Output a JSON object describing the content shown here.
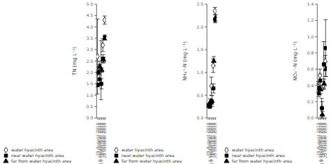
{
  "chart_data": [
    {
      "type": "scatter",
      "ylabel": "TN (mg L⁻¹)",
      "categories": [
        "19 August 2010",
        "6 September 2010",
        "19 September 2010",
        "4 October 2010",
        "20 October 2010"
      ],
      "ylim": [
        0,
        5
      ],
      "yticks": [
        {
          "value": 0,
          "label": "0.0"
        },
        0.5,
        {
          "value": 1.0,
          "label": "1.0"
        },
        1.5,
        {
          "value": 2.0,
          "label": "2.0"
        },
        2.5,
        {
          "value": 3.0,
          "label": "3.0"
        },
        3.5,
        {
          "value": 4.0,
          "label": "4.0"
        },
        4.5,
        {
          "value": 5.0,
          "label": "5.0"
        }
      ],
      "grid": false,
      "legend": "bottom",
      "series": [
        {
          "name": "water hyacinth area",
          "color": "#000000",
          "marker": "hollow_diamond",
          "values": [
            2.7,
            2.25,
            2.1,
            3.2,
            4.3
          ],
          "errors": [
            1.65,
            0.25,
            1.3,
            0.28,
            0.18
          ]
        },
        {
          "name": "near water hyacinth area",
          "color": "#000000",
          "marker": "square",
          "values": [
            1.45,
            1.7,
            1.5,
            2.6,
            3.55
          ],
          "errors": [
            0.08,
            0.18,
            0.22,
            0.18,
            0.1
          ]
        },
        {
          "name": "far from water hyacinth area",
          "color": "#000000",
          "marker": "triangle",
          "values": [
            2.0,
            2.25,
            2.1,
            2.55,
            3.5
          ],
          "errors": [
            0.08,
            0.1,
            0.1,
            0.12,
            0.08
          ]
        }
      ]
    },
    {
      "type": "scatter",
      "ylabel": "NH₄⁺-N (mg L⁻¹)",
      "categories": [
        "19 August 2010",
        "6 September 2010",
        "19 September 2010",
        "4 October 2010",
        "20 October 2010"
      ],
      "ylim": [
        0,
        2.5
      ],
      "yticks": [
        {
          "value": 0,
          "label": "0.0"
        },
        0.5,
        {
          "value": 1.0,
          "label": "1.0"
        },
        1.5,
        {
          "value": 2.0,
          "label": "2.0"
        },
        2.5
      ],
      "grid": false,
      "legend": "bottom",
      "series": [
        {
          "name": "water hyacinth area",
          "color": "#000000",
          "marker": "hollow_diamond",
          "values": [
            null,
            null,
            0.7,
            1.15,
            2.35
          ],
          "errors": [
            null,
            null,
            0.2,
            0.15,
            0.08
          ]
        },
        {
          "name": "near water hyacinth area",
          "color": "#000000",
          "marker": "square",
          "values": [
            0.27,
            0.25,
            0.35,
            0.65,
            2.15
          ],
          "errors": [
            0.04,
            0.04,
            0.05,
            0.1,
            0.06
          ]
        },
        {
          "name": "far from water hyacinth area",
          "color": "#000000",
          "marker": "triangle",
          "values": [
            0.27,
            0.35,
            0.37,
            1.25,
            2.2
          ],
          "errors": [
            0.03,
            0.07,
            0.12,
            0.1,
            0.07
          ]
        }
      ]
    },
    {
      "type": "scatter",
      "ylabel": "NO₃⁻-N (mg L⁻¹)",
      "categories": [
        "19 August 2010",
        "6 September 2010",
        "19 September 2010",
        "4 October 2010",
        "20 October 2010"
      ],
      "ylim": [
        0,
        1.4
      ],
      "yticks": [
        {
          "value": 0,
          "label": "0.0"
        },
        0.2,
        0.4,
        0.6,
        0.8,
        {
          "value": 1.0,
          "label": "1.0"
        },
        1.2,
        1.4
      ],
      "grid": false,
      "legend": "bottom",
      "series": [
        {
          "name": "water hyacinth area",
          "color": "#000000",
          "marker": "hollow_diamond",
          "values": [
            0.38,
            0.52,
            0.12,
            0.4,
            0.7
          ],
          "errors": [
            0.07,
            0.08,
            0.12,
            0.05,
            0.07
          ]
        },
        {
          "name": "near water hyacinth area",
          "color": "#000000",
          "marker": "square",
          "values": [
            0.37,
            0.46,
            0.12,
            0.66,
            0.86
          ],
          "errors": [
            0.05,
            0.08,
            0.08,
            0.28,
            0.35
          ]
        },
        {
          "name": "far from water hyacinth area",
          "color": "#000000",
          "marker": "triangle",
          "values": [
            0.3,
            0.35,
            0.04,
            0.42,
            0.6
          ],
          "errors": [
            0.04,
            0.05,
            0.04,
            0.06,
            0.09
          ]
        }
      ]
    }
  ]
}
